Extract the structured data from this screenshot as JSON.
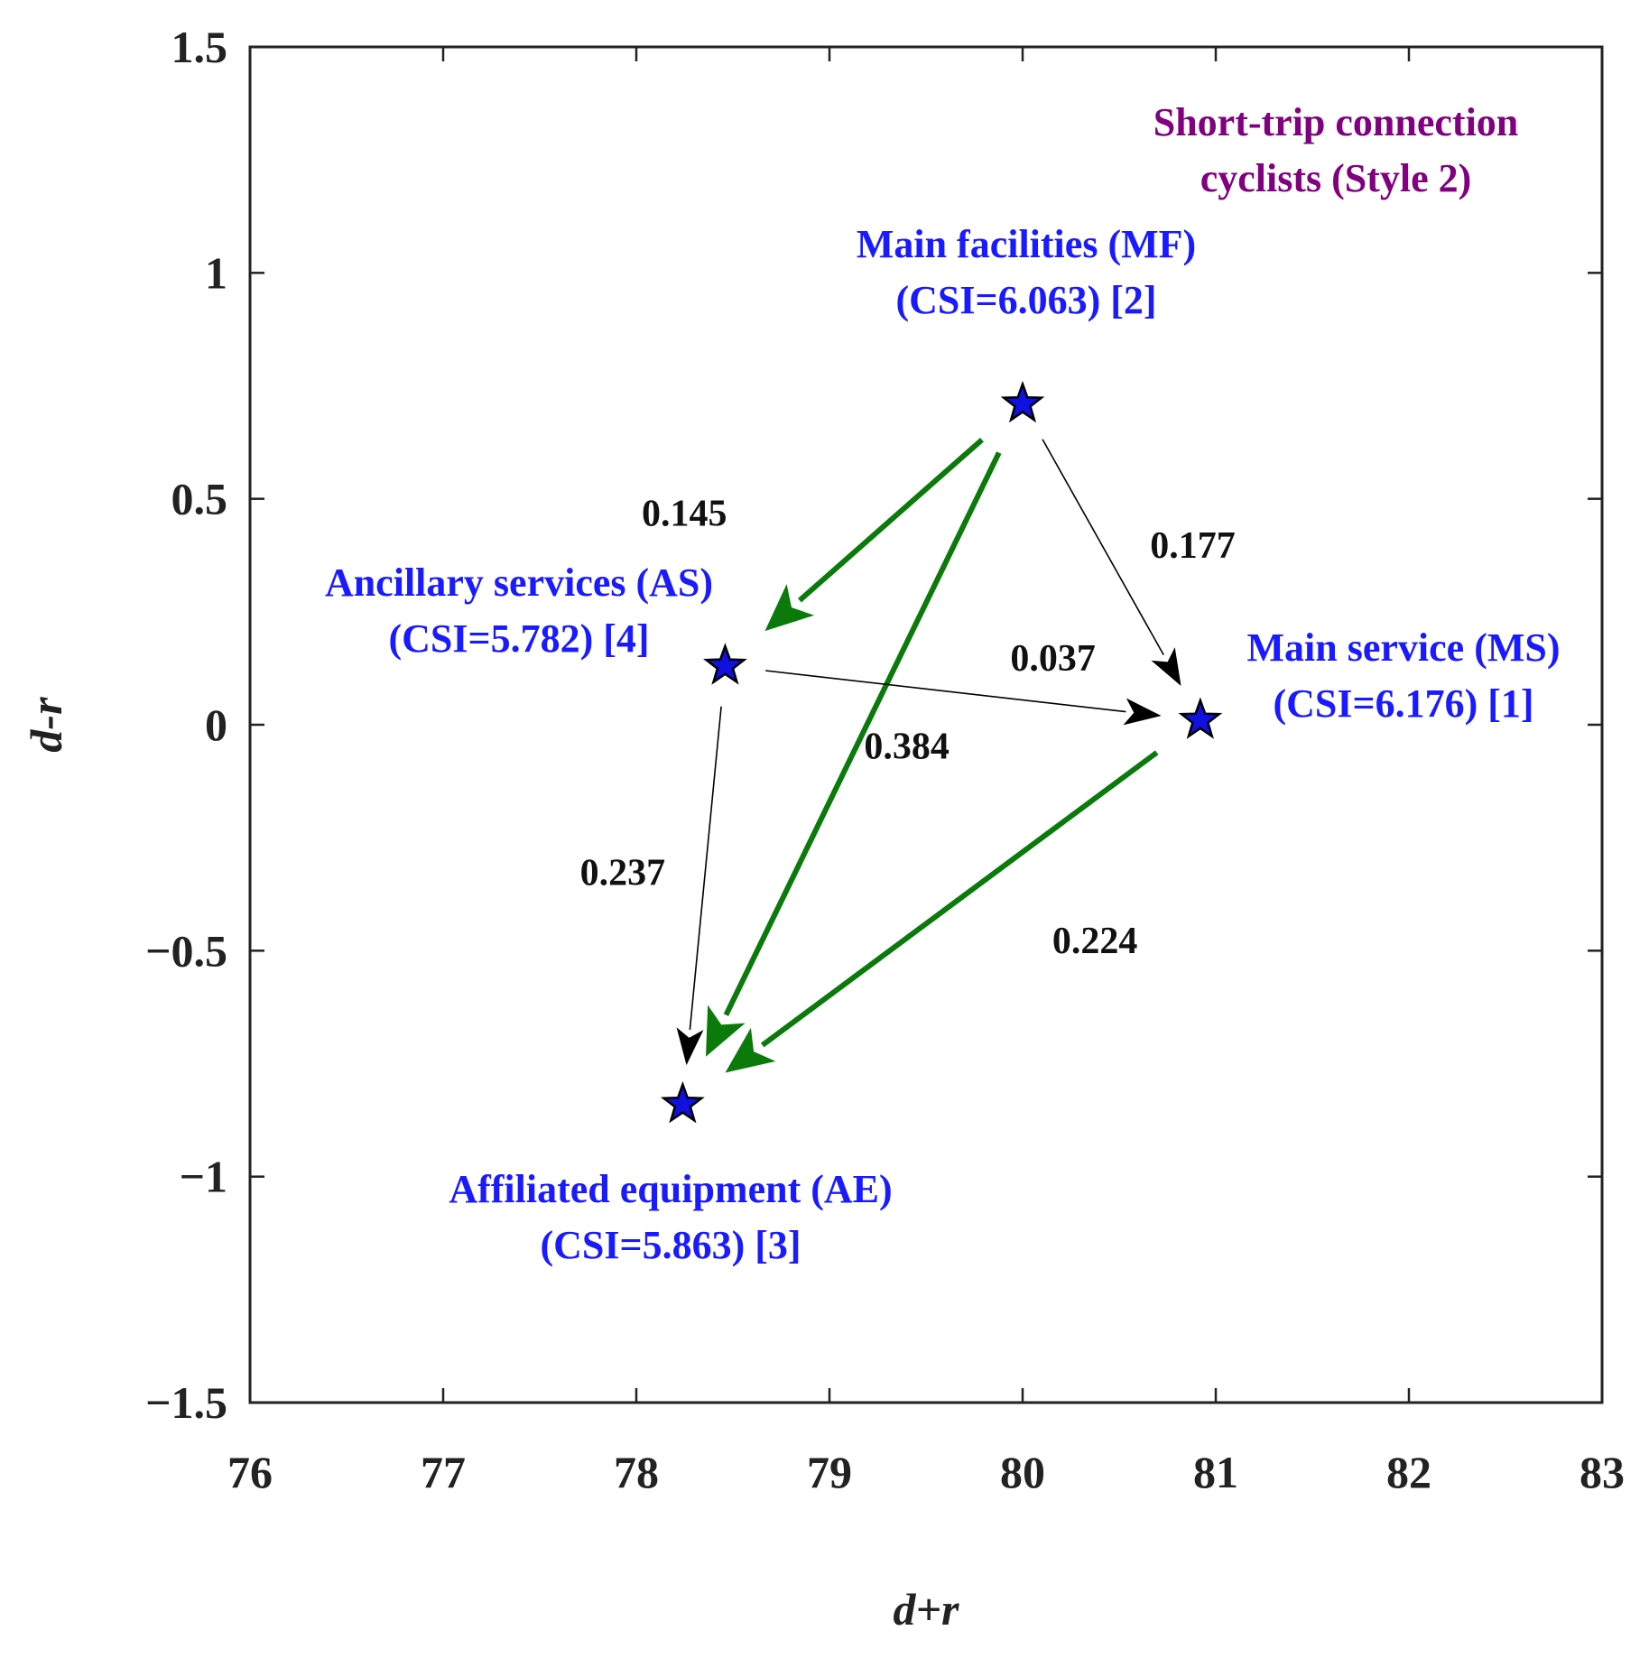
{
  "chart_data": {
    "type": "scatter",
    "subtitle": [
      "Short-trip connection",
      "cyclists (Style 2)"
    ],
    "xlabel": "d+r",
    "ylabel": "d-r",
    "xlim": [
      76,
      83
    ],
    "ylim": [
      -1.5,
      1.5
    ],
    "xticks": [
      "76",
      "77",
      "78",
      "79",
      "80",
      "81",
      "82",
      "83"
    ],
    "yticks": [
      "1.5",
      "1",
      "0.5",
      "0",
      "−0.5",
      "−1",
      "−1.5"
    ],
    "points": [
      {
        "id": "MF",
        "x": 80.0,
        "y": 0.71,
        "label": [
          "Main facilities (MF)",
          "(CSI=6.063) [2]"
        ]
      },
      {
        "id": "AS",
        "x": 78.46,
        "y": 0.13,
        "label": [
          "Ancillary services (AS)",
          "(CSI=5.782) [4]"
        ]
      },
      {
        "id": "MS",
        "x": 80.92,
        "y": 0.01,
        "label": [
          "Main service (MS)",
          "(CSI=6.176) [1]"
        ]
      },
      {
        "id": "AE",
        "x": 78.24,
        "y": -0.84,
        "label": [
          "Affiliated equipment (AE)",
          "(CSI=5.863) [3]"
        ]
      }
    ],
    "edges": [
      {
        "from": "MF",
        "to": "AS",
        "value": "0.145",
        "style": "strong"
      },
      {
        "from": "MF",
        "to": "AE",
        "value": "0.384",
        "style": "strong"
      },
      {
        "from": "MS",
        "to": "AE",
        "value": "0.224",
        "style": "strong"
      },
      {
        "from": "MF",
        "to": "MS",
        "value": "0.177",
        "style": "weak"
      },
      {
        "from": "AS",
        "to": "MS",
        "value": "0.037",
        "style": "weak"
      },
      {
        "from": "AS",
        "to": "AE",
        "value": "0.237",
        "style": "weak"
      }
    ],
    "colors": {
      "marker_fill": "#1010e0",
      "node_label": "#1a1aff",
      "strong_edge": "#0a7a0a",
      "weak_edge": "#000000",
      "subtitle": "#800080"
    }
  }
}
